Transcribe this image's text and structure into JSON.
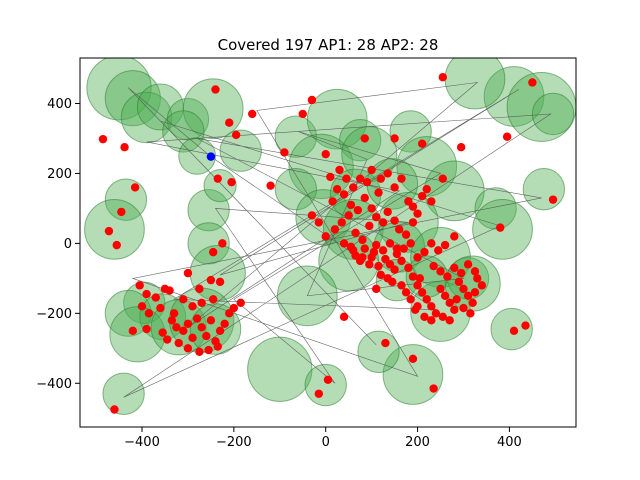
{
  "chart_data": {
    "type": "scatter",
    "title": "Covered 197 AP1: 28 AP2: 28",
    "xlabel": "",
    "ylabel": "",
    "xlim": [
      -535,
      545
    ],
    "ylim": [
      -525,
      530
    ],
    "x_ticks": [
      -400,
      -200,
      0,
      200,
      400
    ],
    "x_tick_labels": [
      "−400",
      "−200",
      "0",
      "200",
      "400"
    ],
    "y_ticks": [
      -400,
      -200,
      0,
      200,
      400
    ],
    "y_tick_labels": [
      "−400",
      "−200",
      "0",
      "200",
      "400"
    ],
    "grid": false,
    "colors": {
      "coverage_fill": "#4caf50",
      "coverage_edge": "#2e7d32",
      "points": "#ff0000",
      "highlight": "#0000ff",
      "path": "#555555"
    },
    "coverage_circles": [
      {
        "x": -450,
        "y": 445,
        "r": 70
      },
      {
        "x": -420,
        "y": 415,
        "r": 60
      },
      {
        "x": -390,
        "y": 360,
        "r": 55
      },
      {
        "x": -360,
        "y": 390,
        "r": 50
      },
      {
        "x": -300,
        "y": 355,
        "r": 45
      },
      {
        "x": -245,
        "y": 385,
        "r": 65
      },
      {
        "x": -310,
        "y": 320,
        "r": 45
      },
      {
        "x": -280,
        "y": 250,
        "r": 40
      },
      {
        "x": -185,
        "y": 265,
        "r": 45
      },
      {
        "x": -435,
        "y": 125,
        "r": 45
      },
      {
        "x": -460,
        "y": 40,
        "r": 65
      },
      {
        "x": -255,
        "y": 95,
        "r": 45
      },
      {
        "x": -230,
        "y": 165,
        "r": 35
      },
      {
        "x": -255,
        "y": 0,
        "r": 45
      },
      {
        "x": -235,
        "y": -85,
        "r": 60
      },
      {
        "x": -395,
        "y": -170,
        "r": 45
      },
      {
        "x": -430,
        "y": -200,
        "r": 50
      },
      {
        "x": -355,
        "y": -210,
        "r": 50
      },
      {
        "x": -410,
        "y": -260,
        "r": 60
      },
      {
        "x": -320,
        "y": -240,
        "r": 60
      },
      {
        "x": -270,
        "y": -220,
        "r": 70
      },
      {
        "x": -240,
        "y": -245,
        "r": 55
      },
      {
        "x": -440,
        "y": -430,
        "r": 45
      },
      {
        "x": -65,
        "y": 305,
        "r": 45
      },
      {
        "x": 25,
        "y": 355,
        "r": 65
      },
      {
        "x": 75,
        "y": 295,
        "r": 45
      },
      {
        "x": -10,
        "y": 220,
        "r": 70
      },
      {
        "x": 95,
        "y": 255,
        "r": 60
      },
      {
        "x": 185,
        "y": 320,
        "r": 45
      },
      {
        "x": 220,
        "y": 220,
        "r": 65
      },
      {
        "x": 280,
        "y": 150,
        "r": 65
      },
      {
        "x": -65,
        "y": 155,
        "r": 45
      },
      {
        "x": -5,
        "y": 75,
        "r": 60
      },
      {
        "x": 65,
        "y": 140,
        "r": 55
      },
      {
        "x": 60,
        "y": 40,
        "r": 65
      },
      {
        "x": 145,
        "y": 170,
        "r": 55
      },
      {
        "x": 180,
        "y": 60,
        "r": 65
      },
      {
        "x": 160,
        "y": -10,
        "r": 55
      },
      {
        "x": 155,
        "y": -105,
        "r": 45
      },
      {
        "x": 50,
        "y": -50,
        "r": 65
      },
      {
        "x": -40,
        "y": -150,
        "r": 65
      },
      {
        "x": 250,
        "y": -40,
        "r": 65
      },
      {
        "x": 250,
        "y": -195,
        "r": 65
      },
      {
        "x": 310,
        "y": -100,
        "r": 45
      },
      {
        "x": 320,
        "y": -115,
        "r": 60
      },
      {
        "x": 370,
        "y": 100,
        "r": 45
      },
      {
        "x": 385,
        "y": 40,
        "r": 65
      },
      {
        "x": 410,
        "y": 420,
        "r": 65
      },
      {
        "x": 470,
        "y": 390,
        "r": 75
      },
      {
        "x": 325,
        "y": 470,
        "r": 65
      },
      {
        "x": 495,
        "y": 370,
        "r": 45
      },
      {
        "x": 475,
        "y": 155,
        "r": 45
      },
      {
        "x": 405,
        "y": -245,
        "r": 45
      },
      {
        "x": 190,
        "y": -375,
        "r": 65
      },
      {
        "x": -100,
        "y": -360,
        "r": 70
      },
      {
        "x": 0,
        "y": -405,
        "r": 45
      },
      {
        "x": 115,
        "y": -310,
        "r": 45
      },
      {
        "x": 220,
        "y": -95,
        "r": 45
      }
    ],
    "points": [
      {
        "x": -485,
        "y": 298
      },
      {
        "x": -438,
        "y": 275
      },
      {
        "x": -415,
        "y": 160
      },
      {
        "x": -445,
        "y": 90
      },
      {
        "x": -472,
        "y": 35
      },
      {
        "x": -455,
        "y": -5
      },
      {
        "x": -240,
        "y": 440
      },
      {
        "x": -210,
        "y": 345
      },
      {
        "x": -195,
        "y": 310
      },
      {
        "x": -205,
        "y": 175
      },
      {
        "x": -235,
        "y": 185
      },
      {
        "x": -225,
        "y": 0
      },
      {
        "x": -245,
        "y": -25
      },
      {
        "x": -160,
        "y": 370
      },
      {
        "x": -120,
        "y": 165
      },
      {
        "x": -90,
        "y": 260
      },
      {
        "x": -50,
        "y": 370
      },
      {
        "x": -30,
        "y": 410
      },
      {
        "x": 0,
        "y": 255
      },
      {
        "x": 85,
        "y": 300
      },
      {
        "x": 150,
        "y": 300
      },
      {
        "x": 210,
        "y": 285
      },
      {
        "x": 255,
        "y": 185
      },
      {
        "x": 295,
        "y": 275
      },
      {
        "x": 255,
        "y": 475
      },
      {
        "x": 450,
        "y": 460
      },
      {
        "x": 395,
        "y": 305
      },
      {
        "x": 495,
        "y": 125
      },
      {
        "x": 380,
        "y": 45
      },
      {
        "x": 280,
        "y": 20
      },
      {
        "x": 410,
        "y": -250
      },
      {
        "x": 435,
        "y": -235
      },
      {
        "x": 235,
        "y": -415
      },
      {
        "x": 190,
        "y": -330
      },
      {
        "x": 130,
        "y": -285
      },
      {
        "x": 40,
        "y": -210
      },
      {
        "x": 5,
        "y": -390
      },
      {
        "x": -15,
        "y": -430
      },
      {
        "x": -460,
        "y": -475
      },
      {
        "x": -390,
        "y": -245
      },
      {
        "x": -420,
        "y": -250
      },
      {
        "x": -405,
        "y": -120
      },
      {
        "x": -390,
        "y": -145
      },
      {
        "x": -370,
        "y": -155
      },
      {
        "x": -350,
        "y": -130
      },
      {
        "x": -340,
        "y": -135
      },
      {
        "x": -400,
        "y": -180
      },
      {
        "x": -385,
        "y": -200
      },
      {
        "x": -360,
        "y": -185
      },
      {
        "x": -335,
        "y": -220
      },
      {
        "x": -325,
        "y": -240
      },
      {
        "x": -310,
        "y": -250
      },
      {
        "x": -300,
        "y": -230
      },
      {
        "x": -290,
        "y": -270
      },
      {
        "x": -280,
        "y": -215
      },
      {
        "x": -270,
        "y": -240
      },
      {
        "x": -260,
        "y": -265
      },
      {
        "x": -250,
        "y": -220
      },
      {
        "x": -240,
        "y": -280
      },
      {
        "x": -230,
        "y": -250
      },
      {
        "x": -220,
        "y": -230
      },
      {
        "x": -210,
        "y": -200
      },
      {
        "x": -200,
        "y": -185
      },
      {
        "x": -185,
        "y": -170
      },
      {
        "x": -320,
        "y": -285
      },
      {
        "x": -300,
        "y": -300
      },
      {
        "x": -275,
        "y": -310
      },
      {
        "x": -255,
        "y": -305
      },
      {
        "x": -235,
        "y": -295
      },
      {
        "x": -310,
        "y": -160
      },
      {
        "x": -290,
        "y": -180
      },
      {
        "x": -270,
        "y": -170
      },
      {
        "x": -245,
        "y": -160
      },
      {
        "x": -230,
        "y": -110
      },
      {
        "x": -250,
        "y": -105
      },
      {
        "x": -300,
        "y": -85
      },
      {
        "x": -275,
        "y": -130
      },
      {
        "x": -355,
        "y": -255
      },
      {
        "x": -345,
        "y": -275
      },
      {
        "x": -330,
        "y": -200
      },
      {
        "x": 10,
        "y": 190
      },
      {
        "x": 30,
        "y": 210
      },
      {
        "x": 45,
        "y": 185
      },
      {
        "x": 60,
        "y": 160
      },
      {
        "x": 75,
        "y": 185
      },
      {
        "x": 90,
        "y": 175
      },
      {
        "x": 100,
        "y": 210
      },
      {
        "x": 115,
        "y": 145
      },
      {
        "x": 120,
        "y": 185
      },
      {
        "x": 135,
        "y": 200
      },
      {
        "x": 150,
        "y": 160
      },
      {
        "x": 165,
        "y": 185
      },
      {
        "x": 180,
        "y": 120
      },
      {
        "x": 190,
        "y": 105
      },
      {
        "x": 200,
        "y": 85
      },
      {
        "x": 210,
        "y": 135
      },
      {
        "x": 220,
        "y": 155
      },
      {
        "x": 230,
        "y": 120
      },
      {
        "x": 15,
        "y": 120
      },
      {
        "x": 25,
        "y": 155
      },
      {
        "x": 40,
        "y": 140
      },
      {
        "x": 55,
        "y": 110
      },
      {
        "x": 70,
        "y": 95
      },
      {
        "x": 85,
        "y": 130
      },
      {
        "x": 100,
        "y": 100
      },
      {
        "x": 110,
        "y": 75
      },
      {
        "x": 125,
        "y": 60
      },
      {
        "x": 135,
        "y": 90
      },
      {
        "x": 150,
        "y": 65
      },
      {
        "x": 160,
        "y": 40
      },
      {
        "x": -30,
        "y": 80
      },
      {
        "x": -15,
        "y": 60
      },
      {
        "x": 0,
        "y": 20
      },
      {
        "x": 20,
        "y": 40
      },
      {
        "x": 35,
        "y": 60
      },
      {
        "x": 50,
        "y": 80
      },
      {
        "x": 65,
        "y": 30
      },
      {
        "x": 80,
        "y": 10
      },
      {
        "x": 95,
        "y": 50
      },
      {
        "x": 110,
        "y": -5
      },
      {
        "x": 125,
        "y": -20
      },
      {
        "x": 140,
        "y": 0
      },
      {
        "x": 155,
        "y": -30
      },
      {
        "x": 170,
        "y": -15
      },
      {
        "x": 185,
        "y": 0
      },
      {
        "x": 200,
        "y": -40
      },
      {
        "x": 215,
        "y": -25
      },
      {
        "x": 230,
        "y": 0
      },
      {
        "x": 245,
        "y": -20
      },
      {
        "x": 260,
        "y": -5
      },
      {
        "x": 40,
        "y": 0
      },
      {
        "x": 55,
        "y": -10
      },
      {
        "x": 65,
        "y": -35
      },
      {
        "x": 80,
        "y": -40
      },
      {
        "x": 95,
        "y": -60
      },
      {
        "x": 120,
        "y": -90
      },
      {
        "x": 135,
        "y": -100
      },
      {
        "x": 150,
        "y": -75
      },
      {
        "x": 165,
        "y": -50
      },
      {
        "x": 180,
        "y": -70
      },
      {
        "x": 190,
        "y": -95
      },
      {
        "x": 200,
        "y": -120
      },
      {
        "x": 210,
        "y": -140
      },
      {
        "x": 220,
        "y": -160
      },
      {
        "x": 230,
        "y": -180
      },
      {
        "x": 240,
        "y": -200
      },
      {
        "x": 250,
        "y": -130
      },
      {
        "x": 260,
        "y": -150
      },
      {
        "x": 270,
        "y": -170
      },
      {
        "x": 280,
        "y": -190
      },
      {
        "x": 290,
        "y": -110
      },
      {
        "x": 300,
        "y": -130
      },
      {
        "x": 310,
        "y": -150
      },
      {
        "x": 320,
        "y": -170
      },
      {
        "x": 330,
        "y": -100
      },
      {
        "x": 340,
        "y": -120
      },
      {
        "x": 200,
        "y": -180
      },
      {
        "x": 215,
        "y": -210
      },
      {
        "x": 230,
        "y": -220
      },
      {
        "x": 255,
        "y": -210
      },
      {
        "x": 270,
        "y": -220
      },
      {
        "x": 285,
        "y": -160
      },
      {
        "x": 300,
        "y": -185
      },
      {
        "x": 315,
        "y": -200
      },
      {
        "x": 325,
        "y": -140
      },
      {
        "x": 235,
        "y": -65
      },
      {
        "x": 250,
        "y": -80
      },
      {
        "x": 265,
        "y": -95
      },
      {
        "x": 280,
        "y": -70
      },
      {
        "x": 295,
        "y": -85
      },
      {
        "x": 310,
        "y": -60
      },
      {
        "x": 325,
        "y": -80
      },
      {
        "x": 175,
        "y": -140
      },
      {
        "x": 185,
        "y": -160
      },
      {
        "x": 195,
        "y": -190
      },
      {
        "x": 205,
        "y": -100
      },
      {
        "x": 165,
        "y": -120
      },
      {
        "x": 145,
        "y": -110
      },
      {
        "x": 110,
        "y": -130
      },
      {
        "x": 100,
        "y": -40
      },
      {
        "x": 75,
        "y": -50
      },
      {
        "x": 60,
        "y": -20
      },
      {
        "x": 85,
        "y": -15
      },
      {
        "x": 105,
        "y": -25
      },
      {
        "x": 115,
        "y": -65
      },
      {
        "x": 130,
        "y": -45
      },
      {
        "x": 140,
        "y": -60
      },
      {
        "x": 155,
        "y": -15
      },
      {
        "x": 175,
        "y": 25
      },
      {
        "x": 190,
        "y": 60
      }
    ],
    "highlight_point": {
      "x": -250,
      "y": 248
    },
    "path": [
      {
        "x": -250,
        "y": 248
      },
      {
        "x": -430,
        "y": 445
      },
      {
        "x": 110,
        "y": -290
      },
      {
        "x": -360,
        "y": 350
      },
      {
        "x": 380,
        "y": 50
      },
      {
        "x": -440,
        "y": -440
      },
      {
        "x": 490,
        "y": 370
      },
      {
        "x": -390,
        "y": 290
      },
      {
        "x": 160,
        "y": 150
      },
      {
        "x": -300,
        "y": -240
      },
      {
        "x": 330,
        "y": 460
      },
      {
        "x": -150,
        "y": 380
      },
      {
        "x": 200,
        "y": -380
      },
      {
        "x": -420,
        "y": -100
      },
      {
        "x": 470,
        "y": 130
      },
      {
        "x": -280,
        "y": 300
      },
      {
        "x": 300,
        "y": -100
      },
      {
        "x": -40,
        "y": -150
      },
      {
        "x": 90,
        "y": 240
      },
      {
        "x": -60,
        "y": 320
      },
      {
        "x": 250,
        "y": 200
      },
      {
        "x": -200,
        "y": -160
      },
      {
        "x": 20,
        "y": -400
      },
      {
        "x": -240,
        "y": 100
      },
      {
        "x": 180,
        "y": 60
      },
      {
        "x": -230,
        "y": -90
      },
      {
        "x": 420,
        "y": 440
      },
      {
        "x": -330,
        "y": -160
      },
      {
        "x": 240,
        "y": -190
      },
      {
        "x": -250,
        "y": 248
      }
    ]
  }
}
